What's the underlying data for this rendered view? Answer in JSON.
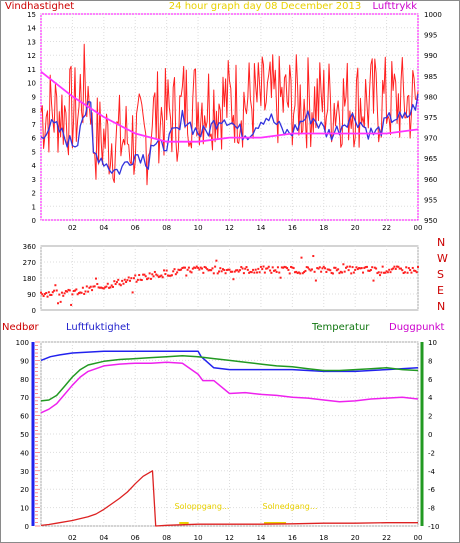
{
  "title": "24 hour graph day   08 December 2013",
  "top": {
    "label_left": "Vindhastighet",
    "label_right": "Lufttrykk",
    "y_left": [
      0,
      1,
      2,
      3,
      4,
      5,
      6,
      7,
      8,
      9,
      10,
      11,
      12,
      13,
      14,
      15
    ],
    "y_right": [
      950,
      955,
      960,
      965,
      970,
      975,
      980,
      985,
      990,
      995,
      1000
    ],
    "x_ticks": [
      "02",
      "04",
      "06",
      "08",
      "10",
      "12",
      "14",
      "16",
      "18",
      "20",
      "22",
      "00"
    ],
    "pressure": {
      "color": "#ff33ff",
      "x": [
        0,
        2,
        4,
        6,
        8,
        10,
        12,
        14,
        16,
        18,
        20,
        22,
        24
      ],
      "y": [
        986,
        980,
        975,
        971,
        969,
        969,
        970,
        970,
        971,
        971,
        971,
        971,
        972
      ]
    },
    "gust_color": "#ff2020",
    "avg_color": "#3333dd"
  },
  "wind": {
    "y_left": [
      0,
      30,
      60,
      90,
      120,
      150,
      180,
      210,
      240,
      270,
      300,
      330,
      360
    ],
    "y_left_labels": [
      "0",
      "",
      "",
      "90",
      "",
      "",
      "180",
      "",
      "",
      "270",
      "",
      "",
      "360"
    ],
    "compass": [
      "N",
      "W",
      "S",
      "E",
      "N"
    ],
    "color": "#ff2020"
  },
  "bottom": {
    "label_precip": "Nedbør",
    "label_humidity": "Luftfuktighet",
    "label_temp": "Temperatur",
    "label_dew": "Duggpunkt",
    "y_left": [
      0,
      10,
      20,
      30,
      40,
      50,
      60,
      70,
      80,
      90,
      100
    ],
    "y_right": [
      -10,
      -8,
      -6,
      -4,
      -2,
      0,
      2,
      4,
      6,
      8,
      10
    ],
    "sunrise": "Soloppgang...",
    "sunset": "Solnedgang...",
    "x_ticks": [
      "02",
      "04",
      "06",
      "08",
      "10",
      "12",
      "14",
      "16",
      "18",
      "20",
      "22",
      "00"
    ],
    "humidity": {
      "color": "#2222ee",
      "x": [
        0,
        0.6,
        1.2,
        2,
        4,
        6,
        8,
        10,
        10.2,
        11,
        12,
        14,
        16,
        18,
        20,
        22,
        24
      ],
      "y": [
        90,
        92,
        93,
        94,
        95,
        95,
        95,
        95,
        92,
        86,
        85,
        85,
        85,
        84,
        84,
        85,
        86
      ]
    },
    "temperature": {
      "color": "#229922",
      "x": [
        0,
        0.5,
        1,
        1.5,
        2,
        2.5,
        3,
        4,
        5,
        6,
        7,
        8,
        9,
        10,
        11,
        12,
        13,
        14,
        15,
        16,
        17,
        18,
        19,
        20,
        21,
        22,
        23,
        24
      ],
      "y": [
        3.6,
        3.7,
        4.2,
        5.2,
        6.2,
        7.0,
        7.5,
        7.9,
        8.1,
        8.2,
        8.3,
        8.4,
        8.5,
        8.4,
        8.2,
        8.0,
        7.8,
        7.6,
        7.4,
        7.3,
        7.1,
        6.9,
        6.9,
        7.0,
        7.1,
        7.2,
        7.0,
        6.9
      ]
    },
    "dewpoint": {
      "color": "#ee22ee",
      "x": [
        0,
        0.5,
        1,
        1.5,
        2,
        2.5,
        3,
        4,
        5,
        6,
        7,
        8,
        9,
        10,
        10.3,
        11,
        12,
        13,
        14,
        15,
        16,
        17,
        18,
        19,
        20,
        21,
        22,
        23,
        24
      ],
      "y": [
        2.3,
        2.7,
        3.3,
        4.3,
        5.3,
        6.2,
        6.8,
        7.4,
        7.6,
        7.7,
        7.7,
        7.8,
        7.7,
        6.5,
        5.8,
        5.8,
        4.4,
        4.5,
        4.3,
        4.2,
        4.0,
        3.9,
        3.7,
        3.5,
        3.6,
        3.8,
        3.9,
        4.0,
        3.8
      ]
    },
    "precip": {
      "color": "#dd2222",
      "x": [
        0,
        0.5,
        1,
        2,
        3,
        3.5,
        4,
        4.5,
        5,
        5.5,
        6,
        6.5,
        7,
        7.1,
        7.3,
        8,
        10,
        12,
        14,
        16,
        18,
        20,
        22,
        24
      ],
      "y": [
        0.3,
        0.8,
        1.5,
        3,
        5,
        6.5,
        9,
        12,
        15,
        18.5,
        23,
        27,
        29.5,
        30,
        0,
        0.4,
        1,
        1,
        1,
        1.2,
        1.5,
        1.5,
        1.8,
        1.8
      ]
    }
  }
}
